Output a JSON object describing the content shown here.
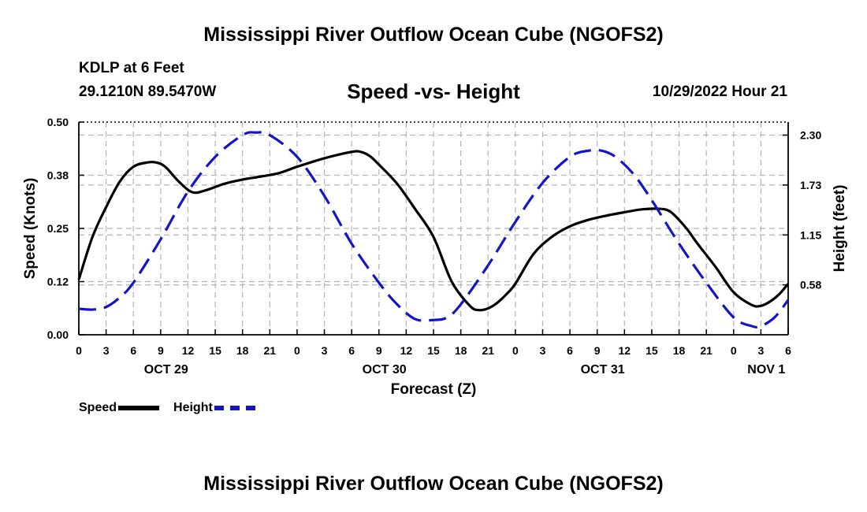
{
  "title": "Mississippi River Outflow Ocean Cube (NGOFS2)",
  "station": "KDLP at 6 Feet",
  "coords": "29.1210N  89.5470W",
  "subtitle": "Speed -vs- Height",
  "datetime": "10/29/2022 Hour 21",
  "bottom_title": "Mississippi River Outflow Ocean Cube (NGOFS2)",
  "legend": {
    "speed_label": "Speed",
    "height_label": "Height"
  },
  "colors": {
    "speed": "#000000",
    "height": "#1414c8",
    "grid": "#b4b4b4"
  },
  "chart_data": {
    "type": "line",
    "xlabel": "Forecast (Z)",
    "ylabel": "Speed (Knots)",
    "y2label": "Height (feet)",
    "x_range": [
      0,
      78
    ],
    "ylim": [
      0,
      0.5
    ],
    "y2lim": [
      0,
      2.45
    ],
    "x_ticks": [
      0,
      3,
      6,
      9,
      12,
      15,
      18,
      21,
      24,
      27,
      30,
      33,
      36,
      39,
      42,
      45,
      48,
      51,
      54,
      57,
      60,
      63,
      66,
      69,
      72,
      75,
      78
    ],
    "x_tick_labels": [
      "0",
      "3",
      "6",
      "9",
      "12",
      "15",
      "18",
      "21",
      "0",
      "3",
      "6",
      "9",
      "12",
      "15",
      "18",
      "21",
      "0",
      "3",
      "6",
      "9",
      "12",
      "15",
      "18",
      "21",
      "0",
      "3",
      "6"
    ],
    "date_labels": [
      {
        "x": 9.6,
        "label": "OCT 29"
      },
      {
        "x": 33.6,
        "label": "OCT 30"
      },
      {
        "x": 57.6,
        "label": "OCT 31"
      },
      {
        "x": 75.6,
        "label": "NOV 1"
      }
    ],
    "y_ticks": [
      0,
      0.125,
      0.25,
      0.375,
      0.5
    ],
    "y_tick_labels": [
      "0.00",
      "0.12",
      "0.25",
      "0.38",
      "0.50"
    ],
    "y2_ticks": [
      0.575,
      1.15,
      1.725,
      2.3
    ],
    "y2_tick_labels": [
      "0.58",
      "1.15",
      "1.73",
      "2.30"
    ],
    "grid": true,
    "series": [
      {
        "name": "Speed",
        "axis": "left",
        "x": [
          0,
          1.5,
          3,
          4.5,
          6,
          7.5,
          8.5,
          9.5,
          11,
          12.5,
          14,
          16,
          18,
          20,
          22,
          24,
          27,
          30,
          31,
          32,
          33,
          35,
          37,
          39,
          41,
          43,
          44,
          45,
          46,
          47,
          48,
          50,
          52,
          54,
          56,
          58,
          60,
          62,
          64,
          65,
          66,
          67,
          68,
          70,
          72,
          74,
          75,
          76,
          77,
          78
        ],
        "y": [
          0.13,
          0.23,
          0.3,
          0.36,
          0.395,
          0.405,
          0.405,
          0.395,
          0.36,
          0.335,
          0.34,
          0.355,
          0.365,
          0.372,
          0.38,
          0.395,
          0.415,
          0.43,
          0.43,
          0.42,
          0.4,
          0.355,
          0.295,
          0.23,
          0.125,
          0.068,
          0.058,
          0.062,
          0.075,
          0.095,
          0.12,
          0.19,
          0.23,
          0.255,
          0.27,
          0.28,
          0.288,
          0.295,
          0.296,
          0.29,
          0.27,
          0.245,
          0.215,
          0.16,
          0.1,
          0.07,
          0.068,
          0.078,
          0.095,
          0.12
        ]
      },
      {
        "name": "Height",
        "axis": "right",
        "x": [
          0,
          1.5,
          3,
          4.5,
          6,
          9,
          12,
          15,
          18,
          19.5,
          21,
          24,
          27,
          30,
          33,
          35,
          37,
          39,
          40.5,
          42,
          45,
          48,
          51,
          54,
          56,
          57.5,
          59,
          61,
          63,
          66,
          69,
          72,
          74,
          75,
          76.5,
          78
        ],
        "y": [
          0.3,
          0.29,
          0.32,
          0.43,
          0.6,
          1.1,
          1.65,
          2.05,
          2.3,
          2.33,
          2.3,
          2.05,
          1.6,
          1.05,
          0.6,
          0.35,
          0.18,
          0.17,
          0.2,
          0.35,
          0.8,
          1.3,
          1.75,
          2.05,
          2.12,
          2.12,
          2.05,
          1.85,
          1.55,
          1.05,
          0.6,
          0.2,
          0.1,
          0.1,
          0.2,
          0.4
        ]
      }
    ]
  }
}
